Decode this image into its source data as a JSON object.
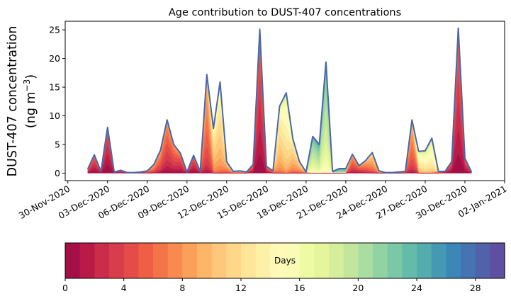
{
  "chart_data": {
    "type": "area",
    "title": "Age contribution to DUST-407 concentrations",
    "ylabel_line1": "DUST-407 concentration",
    "ylabel_line2": "(ng m",
    "ylabel_sup": "−3",
    "ylabel_close": ")",
    "xlabel": "",
    "ylim": [
      -1.3,
      26.5
    ],
    "yticks": [
      0,
      5,
      10,
      15,
      20,
      25
    ],
    "xlim_days": [
      -0.2,
      33.0
    ],
    "xtick_labels": [
      "30-Nov-2020",
      "03-Dec-2020",
      "06-Dec-2020",
      "09-Dec-2020",
      "12-Dec-2020",
      "15-Dec-2020",
      "18-Dec-2020",
      "21-Dec-2020",
      "24-Dec-2020",
      "27-Dec-2020",
      "30-Dec-2020",
      "02-Jan-2021"
    ],
    "xtick_days": [
      0,
      3,
      6,
      9,
      12,
      15,
      18,
      21,
      24,
      27,
      30,
      33
    ],
    "time_step_days": 0.5,
    "series_start_day": 1.5,
    "total_concentration": [
      0.7,
      3.2,
      0.3,
      8.0,
      0.2,
      0.5,
      0.1,
      0.1,
      0.2,
      0.4,
      1.5,
      4.0,
      9.3,
      5.0,
      3.5,
      0.2,
      3.1,
      0.3,
      17.2,
      7.8,
      15.9,
      2.0,
      0.3,
      0.4,
      0.2,
      1.5,
      25.1,
      1.2,
      0.4,
      11.7,
      14.0,
      6.0,
      2.0,
      0.2,
      6.4,
      5.0,
      19.4,
      0.3,
      0.8,
      0.8,
      3.3,
      1.3,
      2.2,
      3.6,
      0.4,
      0.1,
      0.1,
      0.2,
      0.3,
      9.3,
      3.8,
      3.9,
      6.1,
      0.3,
      0.3,
      2.0,
      25.3,
      2.6,
      0.2
    ],
    "dominant_age_days": [
      3,
      2,
      1,
      1,
      2,
      2,
      2,
      2,
      3,
      5,
      6,
      5,
      4,
      4,
      3,
      2,
      2,
      3,
      6,
      11,
      11,
      8,
      8,
      8,
      8,
      3,
      2,
      3,
      6,
      11,
      13,
      10,
      9,
      9,
      19,
      20,
      19,
      22,
      22,
      22,
      5,
      4,
      6,
      8,
      8,
      8,
      8,
      8,
      4,
      6,
      13,
      14,
      14,
      6,
      2,
      2,
      2,
      2,
      2
    ],
    "colorbar": {
      "label": "Days",
      "range": [
        0,
        30
      ],
      "ticks": [
        0,
        4,
        8,
        12,
        16,
        20,
        24,
        28
      ],
      "colors": [
        "#a50f47",
        "#b91a48",
        "#ca2c4a",
        "#d83d4b",
        "#e54b48",
        "#ef5e45",
        "#f47449",
        "#f88a4f",
        "#fba05b",
        "#fdb567",
        "#fec779",
        "#fed789",
        "#fee59a",
        "#fff0a8",
        "#fffab8",
        "#f9fcb6",
        "#effaa4",
        "#e4f59b",
        "#d5ee9b",
        "#c1e69c",
        "#aadda2",
        "#92d3a3",
        "#7ac8a5",
        "#65bba9",
        "#55acad",
        "#4599b3",
        "#3d87b8",
        "#4673b3",
        "#5162aa",
        "#5e4fa2"
      ]
    }
  }
}
